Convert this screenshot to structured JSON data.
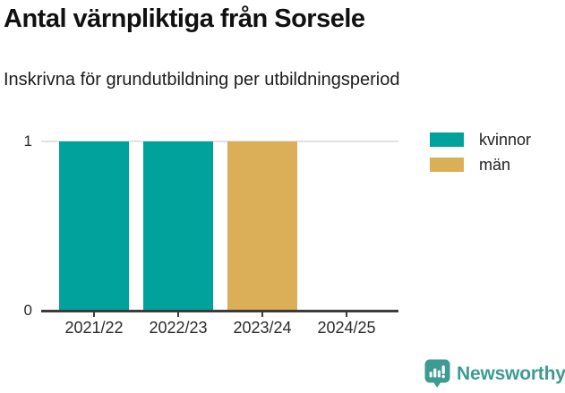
{
  "header": {
    "title": "Antal värnpliktiga från Sorsele",
    "subtitle": "Inskrivna för grundutbildning per utbildningsperiod"
  },
  "chart_data": {
    "type": "bar",
    "title": "Antal värnpliktiga från Sorsele",
    "subtitle": "Inskrivna för grundutbildning per utbildningsperiod",
    "categories": [
      "2021/22",
      "2022/23",
      "2023/24",
      "2024/25"
    ],
    "series": [
      {
        "name": "kvinnor",
        "color": "#00a29b",
        "values": [
          1,
          1,
          0,
          0
        ]
      },
      {
        "name": "män",
        "color": "#dbae58",
        "values": [
          0,
          0,
          1,
          0
        ]
      }
    ],
    "xlabel": "",
    "ylabel": "",
    "ylim": [
      0,
      1
    ],
    "yticks": [
      0,
      1
    ],
    "grid": "horizontal-at-yticks",
    "legend_position": "top-right",
    "axis_color": "#3b3b3b",
    "gridline_color": "#e2e2e2"
  },
  "footer": {
    "brand": "Newsworthy",
    "brand_color": "#3d9b94"
  }
}
